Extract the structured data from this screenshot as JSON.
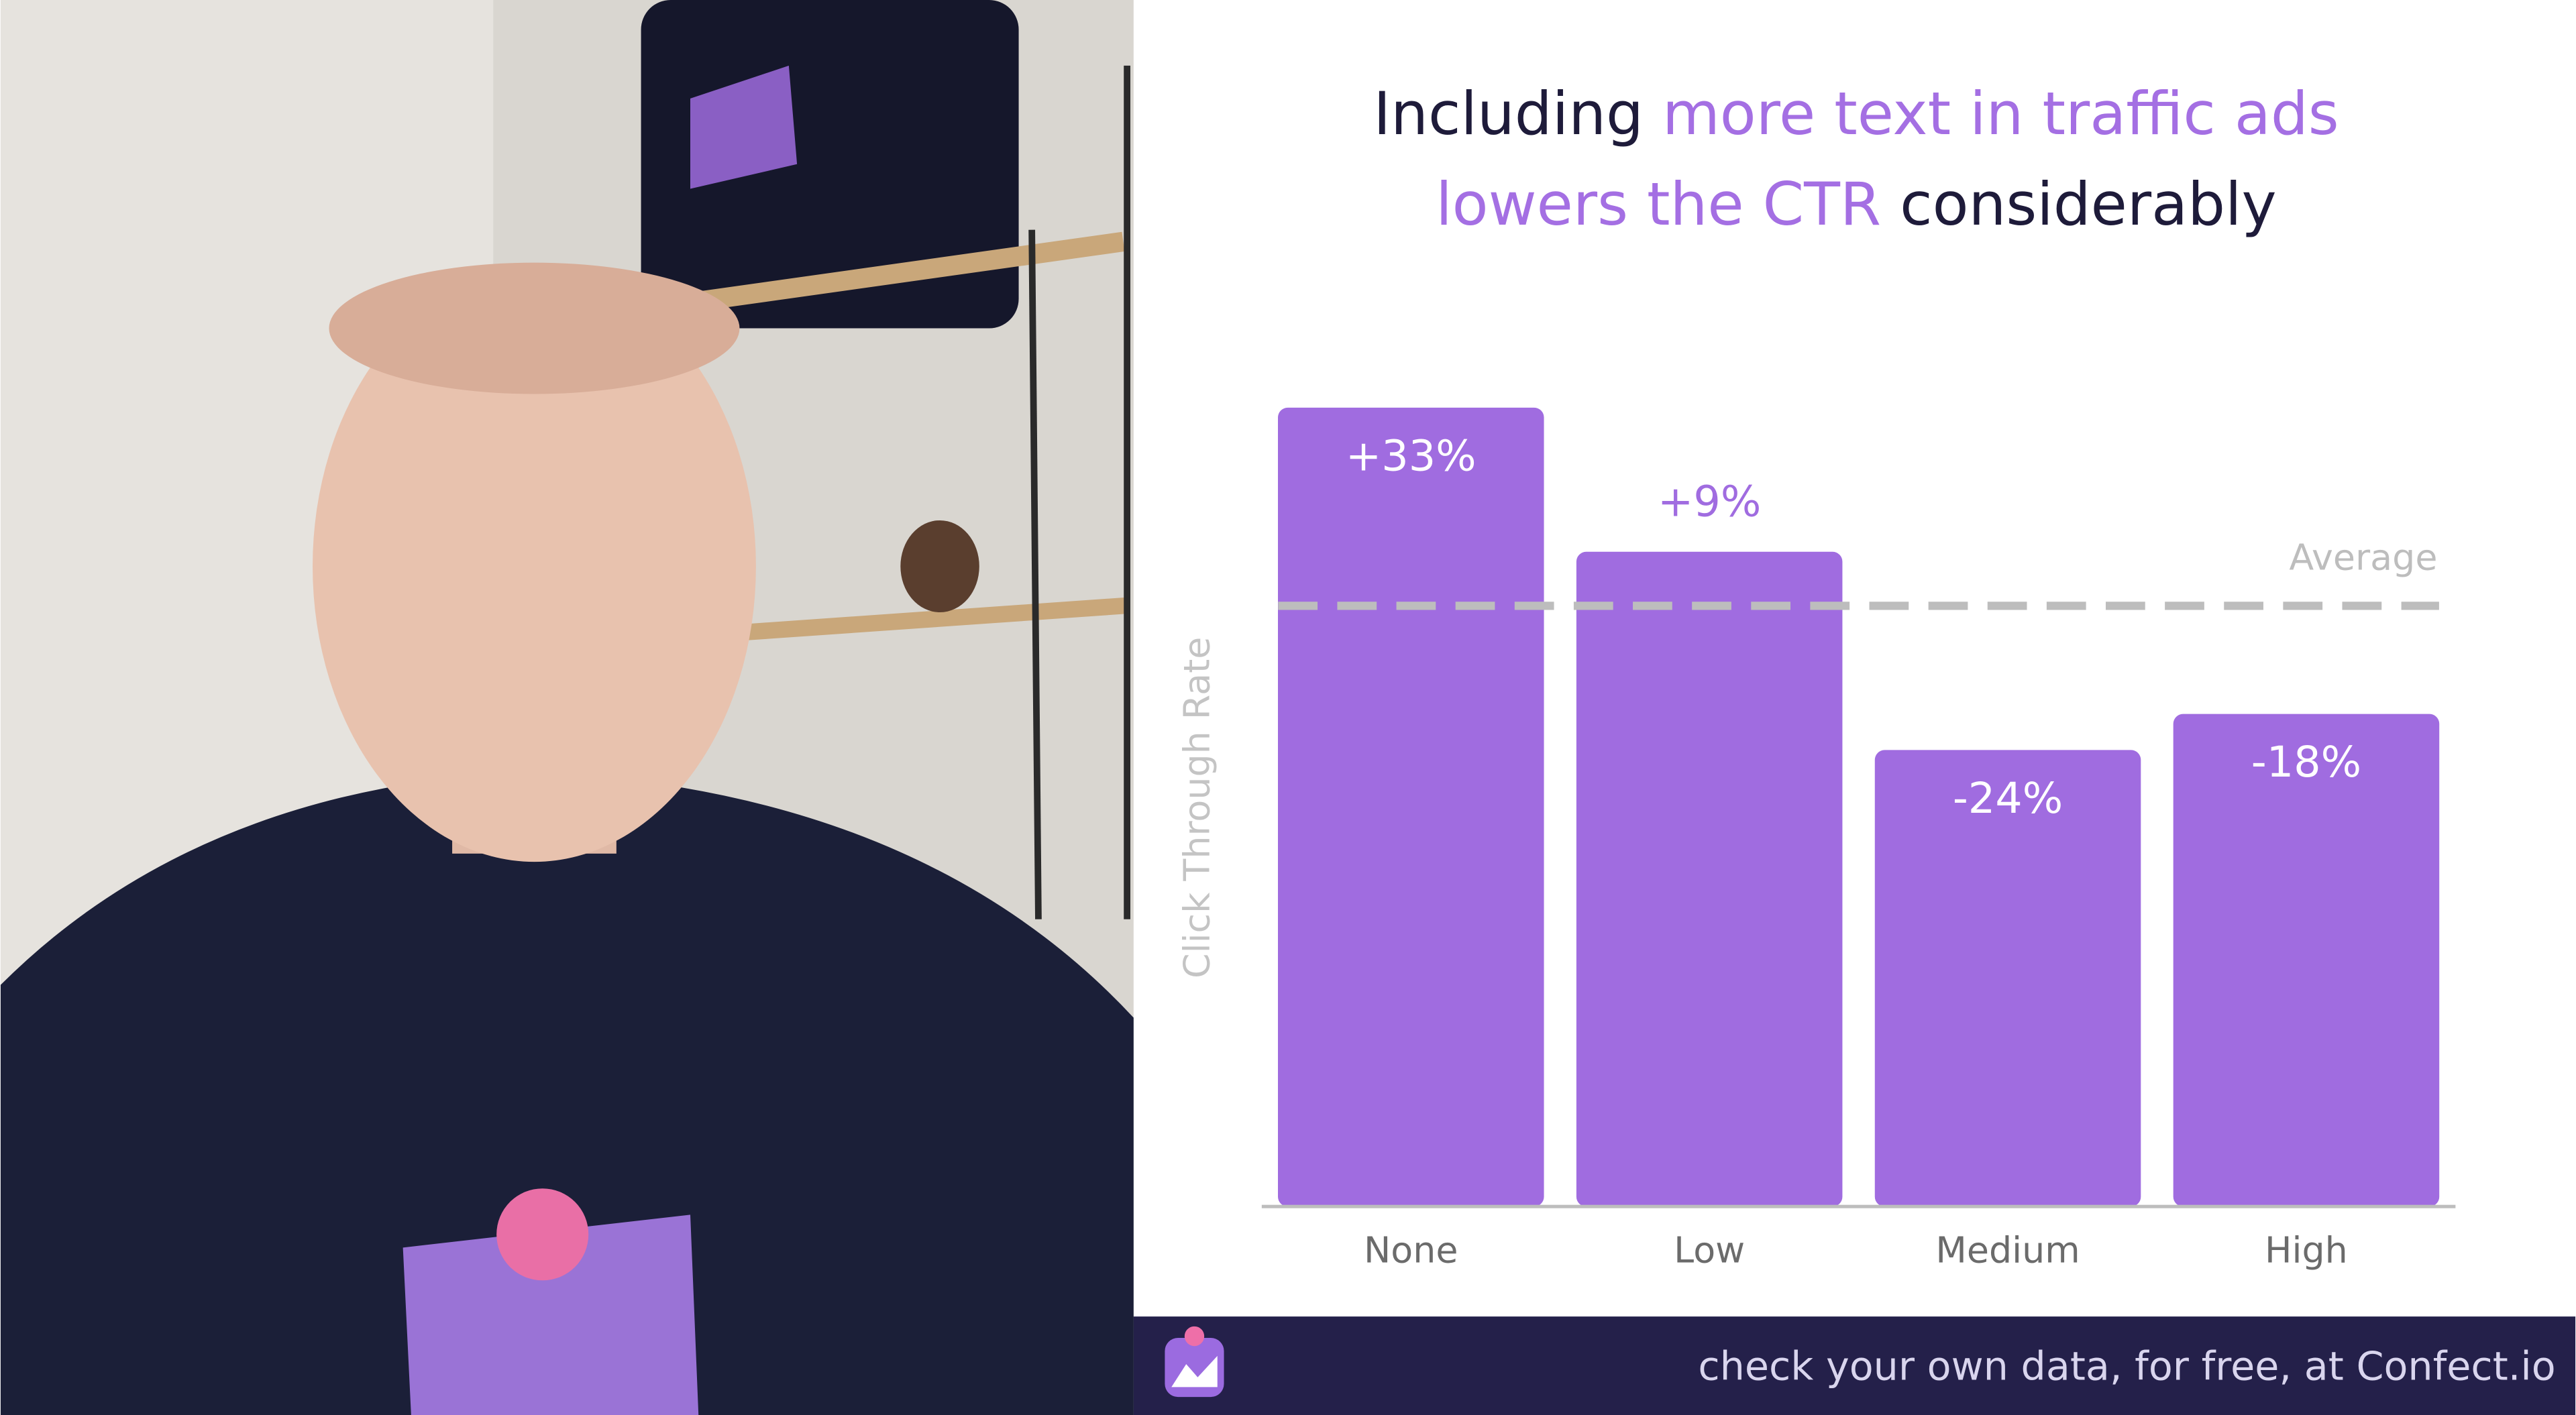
{
  "chart_data": {
    "type": "bar",
    "title": [
      {
        "text": "Including ",
        "color": "#1e1b3a"
      },
      {
        "text": "more text in traffic ads",
        "color": "#a46fe3"
      },
      {
        "text": "lowers the CTR",
        "color": "#a46fe3"
      },
      {
        "text": " considerably",
        "color": "#1e1b3a"
      }
    ],
    "y_label": "Click Through Rate",
    "categories": [
      "None",
      "Low",
      "Medium",
      "High"
    ],
    "values": [
      33,
      9,
      -24,
      -18
    ],
    "value_labels": [
      "+33%",
      "+9%",
      "-24%",
      "-18%"
    ],
    "color": "#a06ce0",
    "ylim": [
      -100,
      35
    ],
    "reference_line": {
      "label": "Average",
      "value": 0,
      "color": "#bdbdbd"
    },
    "footer": "check your own data, for free, at Confect.io"
  }
}
